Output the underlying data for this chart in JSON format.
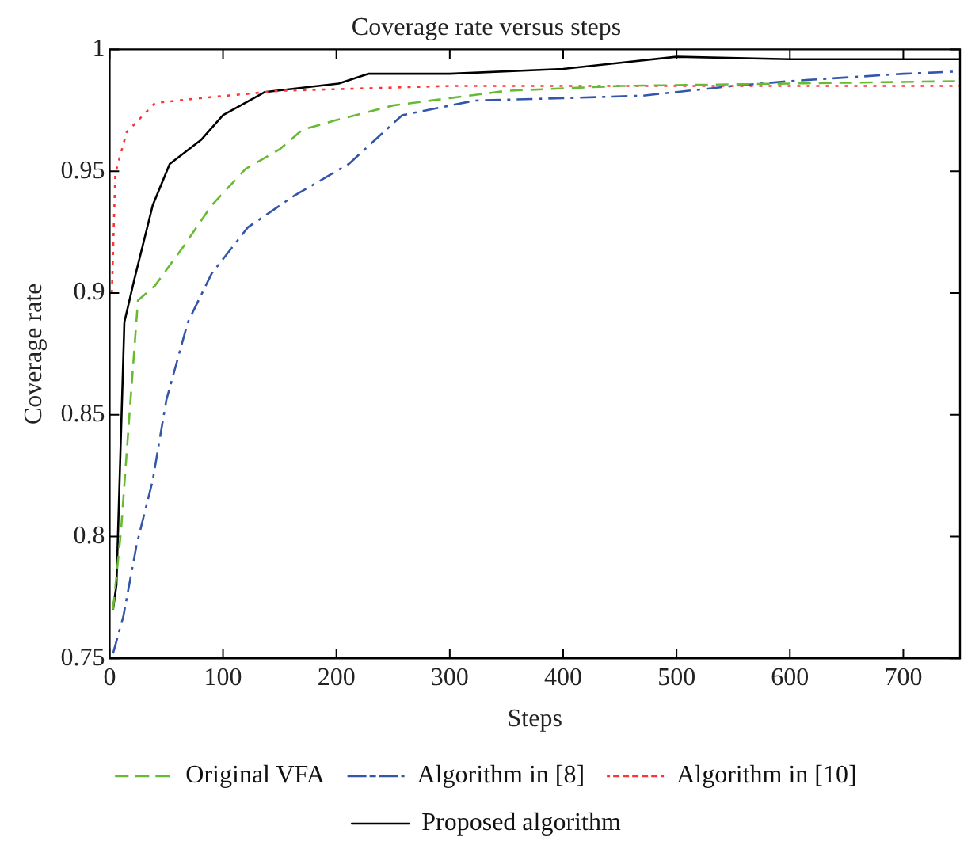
{
  "chart_data": {
    "type": "line",
    "title": "Coverage rate versus steps",
    "xlabel": "Steps",
    "ylabel": "Coverage rate",
    "xlim": [
      0,
      750
    ],
    "xticks": [
      0,
      100,
      200,
      300,
      400,
      500,
      600,
      700
    ],
    "ylim": [
      0.75,
      1
    ],
    "yticks": [
      0.75,
      0.8,
      0.85,
      0.9,
      0.95,
      1
    ],
    "grid": false,
    "legend": "bottom",
    "marker": "none",
    "series": [
      {
        "name": "Original VFA",
        "color": "#66bb33",
        "line_style": "dashed",
        "x": [
          3,
          10,
          17,
          25,
          40,
          65,
          90,
          120,
          150,
          170,
          200,
          250,
          300,
          350,
          450,
          600,
          750
        ],
        "values": [
          0.77,
          0.802,
          0.847,
          0.897,
          0.903,
          0.919,
          0.936,
          0.951,
          0.959,
          0.967,
          0.971,
          0.977,
          0.98,
          0.983,
          0.985,
          0.986,
          0.987
        ]
      },
      {
        "name": "Algorithm in [8]",
        "color": "#3355aa",
        "line_style": "dashdot",
        "x": [
          3,
          12,
          24,
          38,
          50,
          69,
          90,
          122,
          163,
          211,
          258,
          322,
          400,
          470,
          550,
          600,
          700,
          750
        ],
        "values": [
          0.752,
          0.767,
          0.797,
          0.823,
          0.856,
          0.888,
          0.908,
          0.927,
          0.94,
          0.953,
          0.973,
          0.979,
          0.98,
          0.981,
          0.985,
          0.987,
          0.99,
          0.991
        ]
      },
      {
        "name": "Algorithm in [10]",
        "color": "#ff3333",
        "line_style": "dotted",
        "x": [
          2,
          5,
          15,
          40,
          80,
          150,
          300,
          500,
          750
        ],
        "values": [
          0.9,
          0.949,
          0.966,
          0.978,
          0.98,
          0.983,
          0.985,
          0.985,
          0.985
        ]
      },
      {
        "name": "Proposed algorithm",
        "color": "#000000",
        "line_style": "solid",
        "x": [
          3,
          6,
          13,
          22,
          38,
          53,
          81,
          100,
          137,
          202,
          228,
          300,
          400,
          500,
          600,
          750
        ],
        "values": [
          0.77,
          0.78,
          0.888,
          0.906,
          0.936,
          0.953,
          0.963,
          0.973,
          0.9825,
          0.986,
          0.99,
          0.99,
          0.992,
          0.997,
          0.996,
          0.996
        ]
      }
    ]
  }
}
